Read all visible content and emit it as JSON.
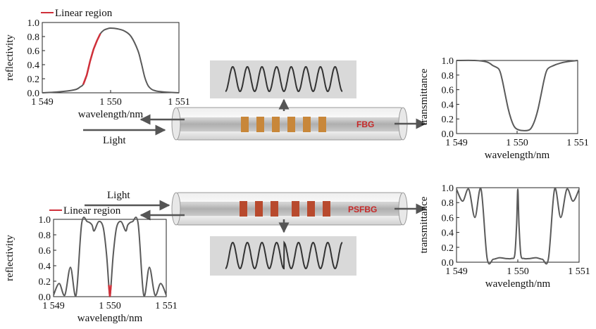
{
  "colors": {
    "curve": "#5a5a5a",
    "linear_region": "#d0303a",
    "fbg_band": "#c8873a",
    "psfbg_band": "#b84a2e",
    "fiber_label": "#c62828",
    "pattern_box": "#d9d9d9"
  },
  "labels": {
    "light_top": "Light",
    "light_bottom": "Light",
    "fbg": "FBG",
    "psfbg": "PSFBG",
    "linear_region_top": "Linear region",
    "linear_region_bottom": "Linear region"
  },
  "charts": [
    {
      "id": "fbg_reflectivity",
      "type": "line",
      "xlabel": "wavelength/nm",
      "ylabel": "reflectivity",
      "xlim": [
        1549,
        1551
      ],
      "ylim": [
        0,
        1
      ],
      "xticks": [
        "1 549",
        "1 550",
        "1 551"
      ],
      "yticks": [
        "0.0",
        "0.2",
        "0.4",
        "0.6",
        "0.8",
        "1.0"
      ],
      "legend": "Linear region",
      "highlight_range": [
        1549.6,
        1549.85
      ],
      "x": [
        1549.0,
        1549.2,
        1549.4,
        1549.5,
        1549.55,
        1549.6,
        1549.65,
        1549.7,
        1549.75,
        1549.8,
        1549.85,
        1549.9,
        1549.95,
        1550.0,
        1550.1,
        1550.2,
        1550.3,
        1550.4,
        1550.45,
        1550.5,
        1550.55,
        1550.6,
        1550.65,
        1550.7,
        1550.8,
        1551.0
      ],
      "y": [
        0.0,
        0.01,
        0.03,
        0.05,
        0.08,
        0.12,
        0.25,
        0.45,
        0.62,
        0.74,
        0.84,
        0.89,
        0.91,
        0.92,
        0.91,
        0.88,
        0.8,
        0.6,
        0.42,
        0.22,
        0.1,
        0.05,
        0.03,
        0.02,
        0.01,
        0.0
      ]
    },
    {
      "id": "fbg_transmittance",
      "type": "line",
      "xlabel": "wavelength/nm",
      "ylabel": "transmittance",
      "xlim": [
        1549,
        1551
      ],
      "ylim": [
        0,
        1
      ],
      "xticks": [
        "1 549",
        "1 550",
        "1 551"
      ],
      "yticks": [
        "0.0",
        "0.2",
        "0.4",
        "0.6",
        "0.8",
        "1.0"
      ],
      "x": [
        1549.0,
        1549.3,
        1549.5,
        1549.6,
        1549.7,
        1549.75,
        1549.8,
        1549.85,
        1549.9,
        1549.95,
        1550.0,
        1550.1,
        1550.2,
        1550.25,
        1550.3,
        1550.35,
        1550.4,
        1550.45,
        1550.5,
        1550.6,
        1550.7,
        1550.8,
        1551.0
      ],
      "y": [
        1.0,
        1.0,
        0.98,
        0.93,
        0.88,
        0.75,
        0.55,
        0.35,
        0.2,
        0.1,
        0.06,
        0.04,
        0.05,
        0.1,
        0.2,
        0.35,
        0.55,
        0.75,
        0.88,
        0.93,
        0.96,
        0.98,
        1.0
      ]
    },
    {
      "id": "psfbg_reflectivity",
      "type": "line",
      "xlabel": "wavelength/nm",
      "ylabel": "reflectivity",
      "xlim": [
        1549,
        1551
      ],
      "ylim": [
        0,
        1
      ],
      "xticks": [
        "1 549",
        "1 550",
        "1 551"
      ],
      "yticks": [
        "0.0",
        "0.2",
        "0.4",
        "0.6",
        "0.8",
        "1.0"
      ],
      "legend": "Linear region",
      "highlight_range": [
        1549.97,
        1550.03
      ],
      "x": [
        1549.0,
        1549.1,
        1549.2,
        1549.3,
        1549.4,
        1549.5,
        1549.6,
        1549.68,
        1549.72,
        1549.8,
        1549.88,
        1549.94,
        1549.98,
        1550.0,
        1550.02,
        1550.06,
        1550.12,
        1550.2,
        1550.28,
        1550.32,
        1550.4,
        1550.5,
        1550.6,
        1550.7,
        1550.8,
        1550.9,
        1551.0
      ],
      "y": [
        0.02,
        0.17,
        0.02,
        0.38,
        0.02,
        0.95,
        0.97,
        0.93,
        0.85,
        0.97,
        0.9,
        0.55,
        0.15,
        0.0,
        0.15,
        0.55,
        0.9,
        0.97,
        0.85,
        0.93,
        0.97,
        0.95,
        0.02,
        0.38,
        0.02,
        0.17,
        0.02
      ]
    },
    {
      "id": "psfbg_transmittance",
      "type": "line",
      "xlabel": "wavelength/nm",
      "ylabel": "transmittance",
      "xlim": [
        1549,
        1551
      ],
      "ylim": [
        0,
        1
      ],
      "xticks": [
        "1 549",
        "1 550",
        "1 551"
      ],
      "yticks": [
        "0.0",
        "0.2",
        "0.4",
        "0.6",
        "0.8",
        "1.0"
      ],
      "x": [
        1549.0,
        1549.1,
        1549.2,
        1549.3,
        1549.4,
        1549.5,
        1549.6,
        1549.7,
        1549.8,
        1549.9,
        1549.95,
        1549.98,
        1550.0,
        1550.02,
        1550.05,
        1550.1,
        1550.2,
        1550.3,
        1550.4,
        1550.5,
        1550.6,
        1550.7,
        1550.8,
        1550.9,
        1551.0
      ],
      "y": [
        0.98,
        0.82,
        0.98,
        0.6,
        0.98,
        0.05,
        0.04,
        0.06,
        0.05,
        0.05,
        0.1,
        0.5,
        0.98,
        0.5,
        0.1,
        0.05,
        0.05,
        0.06,
        0.04,
        0.05,
        0.98,
        0.6,
        0.98,
        0.82,
        0.98
      ]
    }
  ]
}
